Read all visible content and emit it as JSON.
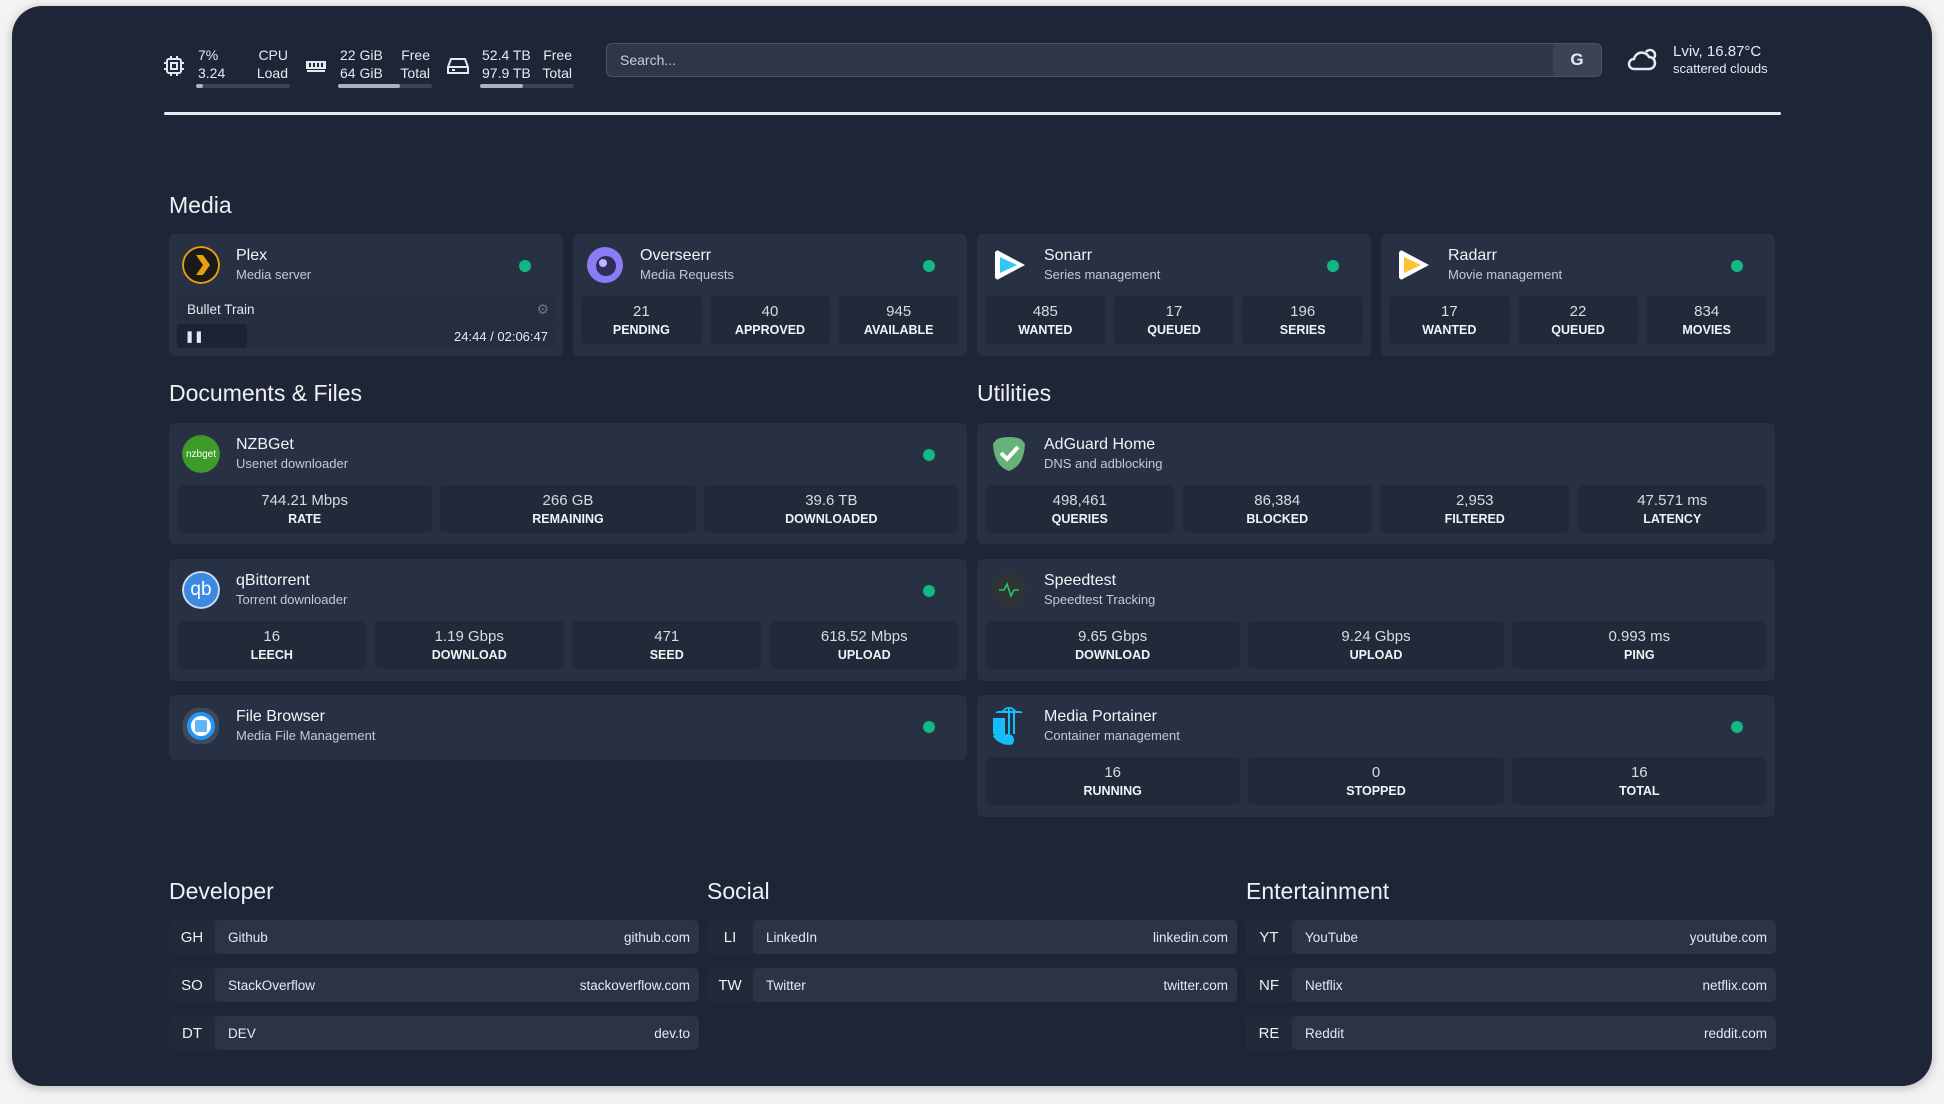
{
  "header": {
    "cpu": {
      "icon": "cpu-icon",
      "value1": "7%",
      "value2": "3.24",
      "label1": "CPU",
      "label2": "Load",
      "usage": 0.07
    },
    "memory": {
      "icon": "memory-icon",
      "value1": "22 GiB",
      "value2": "64 GiB",
      "label1": "Free",
      "label2": "Total",
      "usage": 0.66
    },
    "disk": {
      "icon": "disk-icon",
      "value1": "52.4 TB",
      "value2": "97.9 TB",
      "label1": "Free",
      "label2": "Total",
      "usage": 0.46
    },
    "search": {
      "placeholder": "Search...",
      "provider": "G"
    },
    "weather": {
      "icon": "cloud-icon",
      "location_temp": "Lviv, 16.87°C",
      "condition": "scattered clouds"
    }
  },
  "colors": {
    "background": "#1e2536",
    "card": "#283143",
    "status_online": "#10b981"
  },
  "sections": {
    "media": "Media",
    "documents": "Documents & Files",
    "utilities": "Utilities",
    "developer": "Developer",
    "social": "Social",
    "entertainment": "Entertainment"
  },
  "cards": {
    "plex": {
      "icon": "plex-icon",
      "title": "Plex",
      "subtitle": "Media server",
      "status": "online",
      "now_playing": {
        "title": "Bullet Train",
        "time": "24:44 / 02:06:47",
        "control": "pause-icon"
      }
    },
    "overseerr": {
      "icon": "overseerr-icon",
      "title": "Overseerr",
      "subtitle": "Media Requests",
      "status": "online",
      "stats": [
        {
          "value": "21",
          "label": "PENDING"
        },
        {
          "value": "40",
          "label": "APPROVED"
        },
        {
          "value": "945",
          "label": "AVAILABLE"
        }
      ]
    },
    "sonarr": {
      "icon": "sonarr-icon",
      "title": "Sonarr",
      "subtitle": "Series management",
      "status": "online",
      "stats": [
        {
          "value": "485",
          "label": "WANTED"
        },
        {
          "value": "17",
          "label": "QUEUED"
        },
        {
          "value": "196",
          "label": "SERIES"
        }
      ]
    },
    "radarr": {
      "icon": "radarr-icon",
      "title": "Radarr",
      "subtitle": "Movie management",
      "status": "online",
      "stats": [
        {
          "value": "17",
          "label": "WANTED"
        },
        {
          "value": "22",
          "label": "QUEUED"
        },
        {
          "value": "834",
          "label": "MOVIES"
        }
      ]
    },
    "nzbget": {
      "icon": "nzbget-icon",
      "icon_text": "nzbget",
      "title": "NZBGet",
      "subtitle": "Usenet downloader",
      "status": "online",
      "stats": [
        {
          "value": "744.21 Mbps",
          "label": "RATE"
        },
        {
          "value": "266 GB",
          "label": "REMAINING"
        },
        {
          "value": "39.6 TB",
          "label": "DOWNLOADED"
        }
      ]
    },
    "qbittorrent": {
      "icon": "qbittorrent-icon",
      "icon_text": "qb",
      "title": "qBittorrent",
      "subtitle": "Torrent downloader",
      "status": "online",
      "stats": [
        {
          "value": "16",
          "label": "LEECH"
        },
        {
          "value": "1.19 Gbps",
          "label": "DOWNLOAD"
        },
        {
          "value": "471",
          "label": "SEED"
        },
        {
          "value": "618.52 Mbps",
          "label": "UPLOAD"
        }
      ]
    },
    "filebrowser": {
      "icon": "filebrowser-icon",
      "title": "File Browser",
      "subtitle": "Media File Management",
      "status": "online"
    },
    "adguard": {
      "icon": "adguard-icon",
      "title": "AdGuard Home",
      "subtitle": "DNS and adblocking",
      "stats": [
        {
          "value": "498,461",
          "label": "QUERIES"
        },
        {
          "value": "86,384",
          "label": "BLOCKED"
        },
        {
          "value": "2,953",
          "label": "FILTERED"
        },
        {
          "value": "47.571 ms",
          "label": "LATENCY"
        }
      ]
    },
    "speedtest": {
      "icon": "speedtest-icon",
      "title": "Speedtest",
      "subtitle": "Speedtest Tracking",
      "stats": [
        {
          "value": "9.65 Gbps",
          "label": "DOWNLOAD"
        },
        {
          "value": "9.24 Gbps",
          "label": "UPLOAD"
        },
        {
          "value": "0.993 ms",
          "label": "PING"
        }
      ]
    },
    "portainer": {
      "icon": "portainer-icon",
      "title": "Media Portainer",
      "subtitle": "Container management",
      "status": "online",
      "stats": [
        {
          "value": "16",
          "label": "RUNNING"
        },
        {
          "value": "0",
          "label": "STOPPED"
        },
        {
          "value": "16",
          "label": "TOTAL"
        }
      ]
    }
  },
  "bookmarks": {
    "developer": [
      {
        "abbr": "GH",
        "name": "Github",
        "url": "github.com"
      },
      {
        "abbr": "SO",
        "name": "StackOverflow",
        "url": "stackoverflow.com"
      },
      {
        "abbr": "DT",
        "name": "DEV",
        "url": "dev.to"
      }
    ],
    "social": [
      {
        "abbr": "LI",
        "name": "LinkedIn",
        "url": "linkedin.com"
      },
      {
        "abbr": "TW",
        "name": "Twitter",
        "url": "twitter.com"
      }
    ],
    "entertainment": [
      {
        "abbr": "YT",
        "name": "YouTube",
        "url": "youtube.com"
      },
      {
        "abbr": "NF",
        "name": "Netflix",
        "url": "netflix.com"
      },
      {
        "abbr": "RE",
        "name": "Reddit",
        "url": "reddit.com"
      }
    ]
  }
}
